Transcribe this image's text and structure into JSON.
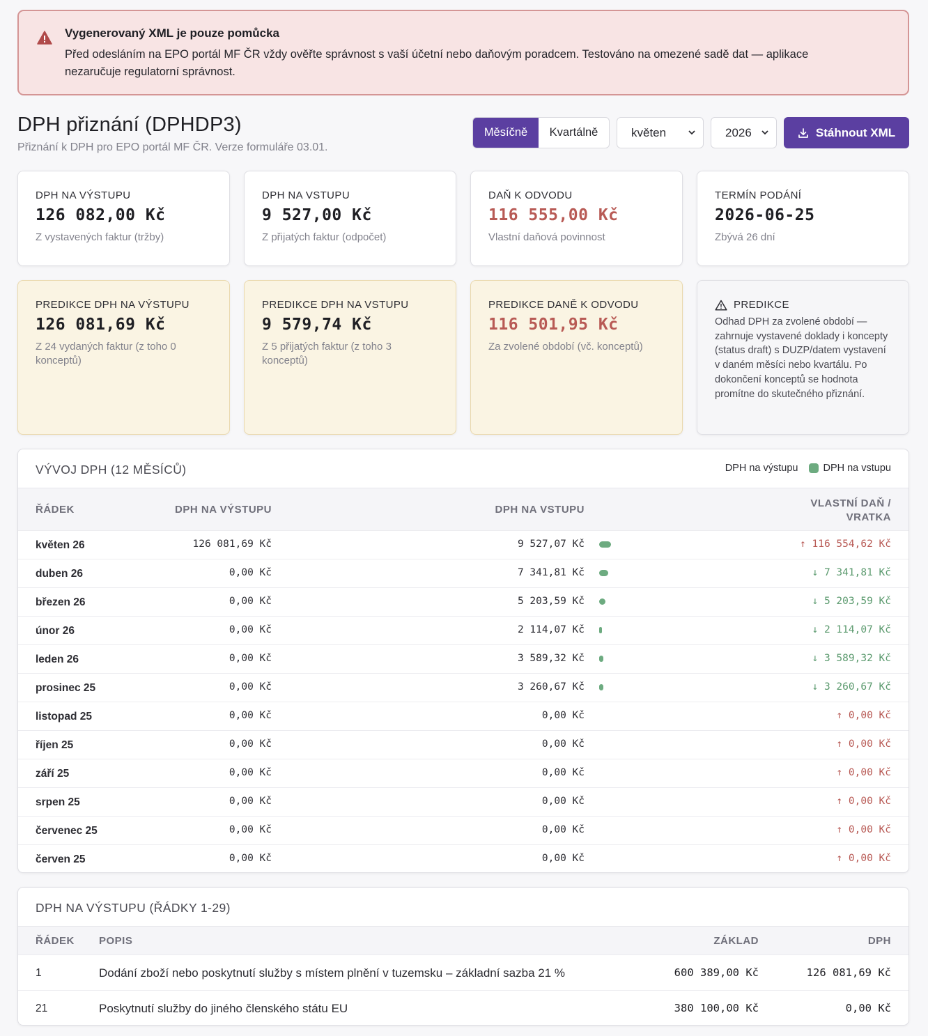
{
  "alert": {
    "title": "Vygenerovaný XML je pouze pomůcka",
    "body": "Před odesláním na EPO portál MF ČR vždy ověřte správnost s vaší účetní nebo daňovým poradcem. Testováno na omezené sadě dat — aplikace nezaručuje regulatorní správnost."
  },
  "header": {
    "title": "DPH přiznání (DPHDP3)",
    "subtitle": "Přiznání k DPH pro EPO portál MF ČR. Verze formuláře 03.01.",
    "period_monthly": "Měsíčně",
    "period_quarterly": "Kvartálně",
    "month_select": "květen",
    "year_select": "2026",
    "download_label": "Stáhnout XML"
  },
  "cards": [
    {
      "label": "DPH NA VÝSTUPU",
      "value": "126 082,00 Kč",
      "sub": "Z vystavených faktur (tržby)"
    },
    {
      "label": "DPH NA VSTUPU",
      "value": "9 527,00 Kč",
      "sub": "Z přijatých faktur (odpočet)"
    },
    {
      "label": "DAŇ K ODVODU",
      "value": "116 555,00 Kč",
      "sub": "Vlastní daňová povinnost"
    },
    {
      "label": "TERMÍN PODÁNÍ",
      "value": "2026-06-25",
      "sub": "Zbývá 26 dní"
    }
  ],
  "predictions": [
    {
      "label": "PREDIKCE DPH NA VÝSTUPU",
      "value": "126 081,69 Kč",
      "sub": "Z 24 vydaných faktur (z toho 0 konceptů)"
    },
    {
      "label": "PREDIKCE DPH NA VSTUPU",
      "value": "9 579,74 Kč",
      "sub": "Z 5 přijatých faktur (z toho 3 konceptů)"
    },
    {
      "label": "PREDIKCE DANĚ K ODVODU",
      "value": "116 501,95 Kč",
      "sub": "Za zvolené období (vč. konceptů)"
    }
  ],
  "prediction_note": {
    "title": "PREDIKCE",
    "body": "Odhad DPH za zvolené období — zahrnuje vystavené doklady i koncepty (status draft) s DUZP/datem vystavení v daném měsíci nebo kvartálu. Po dokončení konceptů se hodnota promítne do skutečného přiznání."
  },
  "trend": {
    "title": "VÝVOJ DPH (12 MĚSÍCŮ)",
    "legend_out": "DPH na výstupu",
    "legend_in": "DPH na vstupu",
    "col_row": "ŘÁDEK",
    "col_out": "DPH NA VÝSTUPU",
    "col_in": "DPH NA VSTUPU",
    "col_net": "VLASTNÍ DAŇ / VRATKA",
    "rows": [
      {
        "month": "květen 26",
        "out": "126 081,69 Kč",
        "in": "9 527,07 Kč",
        "in_value": 9527.07,
        "net": "↑ 116 554,62 Kč",
        "dir": "up"
      },
      {
        "month": "duben 26",
        "out": "0,00 Kč",
        "in": "7 341,81 Kč",
        "in_value": 7341.81,
        "net": "↓ 7 341,81 Kč",
        "dir": "down"
      },
      {
        "month": "březen 26",
        "out": "0,00 Kč",
        "in": "5 203,59 Kč",
        "in_value": 5203.59,
        "net": "↓ 5 203,59 Kč",
        "dir": "down"
      },
      {
        "month": "únor 26",
        "out": "0,00 Kč",
        "in": "2 114,07 Kč",
        "in_value": 2114.07,
        "net": "↓ 2 114,07 Kč",
        "dir": "down"
      },
      {
        "month": "leden 26",
        "out": "0,00 Kč",
        "in": "3 589,32 Kč",
        "in_value": 3589.32,
        "net": "↓ 3 589,32 Kč",
        "dir": "down"
      },
      {
        "month": "prosinec 25",
        "out": "0,00 Kč",
        "in": "3 260,67 Kč",
        "in_value": 3260.67,
        "net": "↓ 3 260,67 Kč",
        "dir": "down"
      },
      {
        "month": "listopad 25",
        "out": "0,00 Kč",
        "in": "0,00 Kč",
        "in_value": 0,
        "net": "↑ 0,00 Kč",
        "dir": "up"
      },
      {
        "month": "říjen 25",
        "out": "0,00 Kč",
        "in": "0,00 Kč",
        "in_value": 0,
        "net": "↑ 0,00 Kč",
        "dir": "up"
      },
      {
        "month": "září 25",
        "out": "0,00 Kč",
        "in": "0,00 Kč",
        "in_value": 0,
        "net": "↑ 0,00 Kč",
        "dir": "up"
      },
      {
        "month": "srpen 25",
        "out": "0,00 Kč",
        "in": "0,00 Kč",
        "in_value": 0,
        "net": "↑ 0,00 Kč",
        "dir": "up"
      },
      {
        "month": "červenec 25",
        "out": "0,00 Kč",
        "in": "0,00 Kč",
        "in_value": 0,
        "net": "↑ 0,00 Kč",
        "dir": "up"
      },
      {
        "month": "červen 25",
        "out": "0,00 Kč",
        "in": "0,00 Kč",
        "in_value": 0,
        "net": "↑ 0,00 Kč",
        "dir": "up"
      }
    ]
  },
  "output_table": {
    "title": "DPH NA VÝSTUPU (ŘÁDKY 1-29)",
    "col_row": "ŘÁDEK",
    "col_desc": "POPIS",
    "col_base": "ZÁKLAD",
    "col_vat": "DPH",
    "rows": [
      {
        "line": "1",
        "desc": "Dodání zboží nebo poskytnutí služby s místem plnění v tuzemsku – základní sazba 21 %",
        "base": "600 389,00 Kč",
        "vat": "126 081,69 Kč"
      },
      {
        "line": "21",
        "desc": "Poskytnutí služby do jiného členského státu EU",
        "base": "380 100,00 Kč",
        "vat": "0,00 Kč"
      }
    ]
  },
  "colors": {
    "accent": "#5b3fa1",
    "negative": "#b85a55",
    "positive": "#5b9a6e",
    "bar": "#6dab80"
  }
}
